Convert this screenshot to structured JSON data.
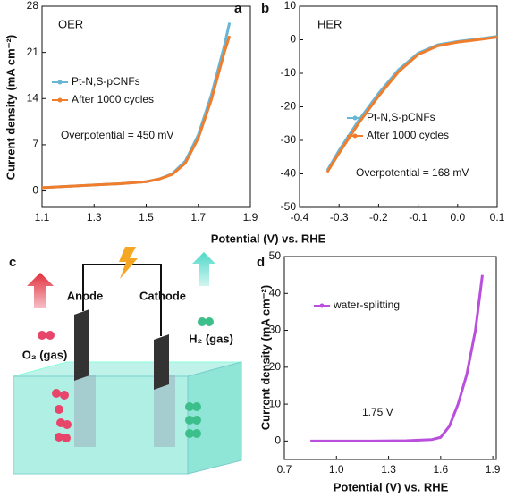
{
  "chart_data": [
    {
      "type": "line",
      "panel": "a",
      "title": "OER",
      "annotation": "Overpotential = 450 mV",
      "ylabel": "Current density (mA cm⁻²)",
      "xlabel": "Potential (V) vs. RHE",
      "x": [
        1.1,
        1.2,
        1.3,
        1.4,
        1.5,
        1.55,
        1.6,
        1.65,
        1.7,
        1.75,
        1.8,
        1.82
      ],
      "series": [
        {
          "name": "Pt-N,S-pCNFs",
          "color": "#67b6d8",
          "values": [
            0.5,
            0.7,
            0.9,
            1.1,
            1.4,
            1.8,
            2.6,
            4.5,
            8.5,
            14.5,
            22,
            25.5
          ]
        },
        {
          "name": "After 1000 cycles",
          "color": "#f07d2c",
          "values": [
            0.5,
            0.7,
            0.9,
            1.1,
            1.4,
            1.8,
            2.5,
            4.2,
            8,
            13.8,
            21,
            23.5
          ]
        }
      ],
      "xlim": [
        1.1,
        1.9
      ],
      "xticks": [
        1.1,
        1.3,
        1.5,
        1.7,
        1.9
      ],
      "ylim": [
        -2.5,
        28
      ],
      "yticks": [
        0,
        7,
        14,
        21,
        28
      ]
    },
    {
      "type": "line",
      "panel": "b",
      "title": "HER",
      "annotation": "Overpotential = 168 mV",
      "x": [
        -0.33,
        -0.3,
        -0.25,
        -0.2,
        -0.15,
        -0.1,
        -0.05,
        0,
        0.05,
        0.1
      ],
      "series": [
        {
          "name": "Pt-N,S-pCNFs",
          "color": "#67b6d8",
          "values": [
            -39,
            -33,
            -24,
            -16,
            -9,
            -4,
            -1.5,
            -0.5,
            0.2,
            1
          ]
        },
        {
          "name": "After 1000 cycles",
          "color": "#f07d2c",
          "values": [
            -39.5,
            -33.8,
            -24.8,
            -16.8,
            -9.6,
            -4.4,
            -1.8,
            -0.7,
            0,
            0.8
          ]
        }
      ],
      "xlim": [
        -0.4,
        0.1
      ],
      "xticks": [
        -0.4,
        -0.3,
        -0.2,
        -0.1,
        {
          "value": 0,
          "label": "0.0"
        },
        0.1
      ],
      "ylim": [
        -50,
        10
      ],
      "yticks": [
        -50,
        -40,
        -30,
        -20,
        -10,
        0,
        10
      ]
    },
    {
      "type": "line",
      "panel": "d",
      "annotation": "1.75 V",
      "ylabel": "Current density (mA cm⁻²)",
      "xlabel": "Potential (V) vs. RHE",
      "x": [
        0.85,
        1.0,
        1.2,
        1.4,
        1.55,
        1.6,
        1.65,
        1.7,
        1.75,
        1.8,
        1.84
      ],
      "series": [
        {
          "name": "water-splitting",
          "color": "#b94fdc",
          "values": [
            0,
            0,
            0,
            0.1,
            0.4,
            1,
            4,
            10,
            18,
            30,
            45
          ]
        }
      ],
      "xlim": [
        0.7,
        1.92
      ],
      "xticks": [
        0.7,
        {
          "value": 1,
          "label": "1.0"
        },
        1.3,
        1.6,
        1.9
      ],
      "ylim": [
        -5,
        50
      ],
      "yticks": [
        0,
        10,
        20,
        30,
        40,
        50
      ]
    }
  ],
  "diagram": {
    "panel": "c",
    "anode": "Anode",
    "cathode": "Cathode",
    "o2": "O₂ (gas)",
    "h2": "H₂ (gas)"
  }
}
